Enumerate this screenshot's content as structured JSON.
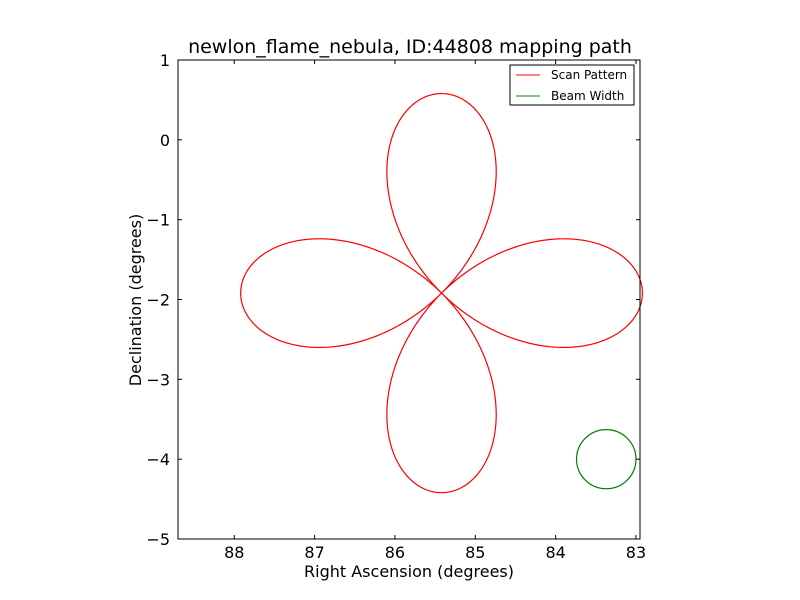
{
  "chart_data": {
    "type": "line",
    "title": "newlon_flame_nebula, ID:44808 mapping path",
    "xlabel": "Right Ascension (degrees)",
    "ylabel": "Declination (degrees)",
    "xlim": [
      88.7,
      82.95
    ],
    "ylim": [
      -5,
      1
    ],
    "x_inverted": true,
    "xticks": [
      88,
      87,
      86,
      85,
      84,
      83
    ],
    "yticks": [
      1,
      0,
      -1,
      -2,
      -3,
      -4,
      -5
    ],
    "xtick_labels": [
      "88",
      "87",
      "86",
      "85",
      "84",
      "83"
    ],
    "ytick_labels": [
      "1",
      "0",
      "−1",
      "−2",
      "−3",
      "−4",
      "−5"
    ],
    "grid": false,
    "legend_position": "top-right",
    "series": [
      {
        "name": "Scan Pattern",
        "color": "#ff0000",
        "center": [
          85.42,
          -1.92
        ],
        "petal_amplitude_ra": 2.5,
        "petal_amplitude_dec": 2.5,
        "petal_count": 4,
        "shape": "rose"
      },
      {
        "name": "Beam Width",
        "color": "#008000",
        "center": [
          83.37,
          -4.0
        ],
        "radius": 0.37,
        "shape": "circle"
      }
    ]
  }
}
